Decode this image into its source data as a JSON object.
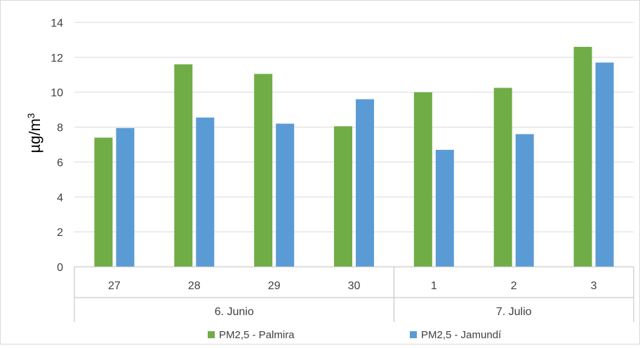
{
  "chart_data": {
    "type": "bar",
    "ylabel": "µg/m",
    "ylabel_sup": "3",
    "ylim": [
      0,
      14
    ],
    "yticks": [
      0,
      2,
      4,
      6,
      8,
      10,
      12,
      14
    ],
    "grid": true,
    "legend_placement": "bottom",
    "groups": [
      {
        "label": "6. Junio",
        "categories": [
          "27",
          "28",
          "29",
          "30"
        ]
      },
      {
        "label": "7. Julio",
        "categories": [
          "1",
          "2",
          "3"
        ]
      }
    ],
    "categories": [
      "27",
      "28",
      "29",
      "30",
      "1",
      "2",
      "3"
    ],
    "series": [
      {
        "name": "PM2,5 - Palmira",
        "color": "#70ad47",
        "values": [
          7.4,
          11.6,
          11.05,
          8.05,
          10.0,
          10.25,
          12.6
        ]
      },
      {
        "name": "PM2,5 - Jamundí",
        "color": "#5b9bd5",
        "values": [
          7.95,
          8.55,
          8.2,
          9.6,
          6.7,
          7.6,
          11.7
        ]
      }
    ]
  }
}
